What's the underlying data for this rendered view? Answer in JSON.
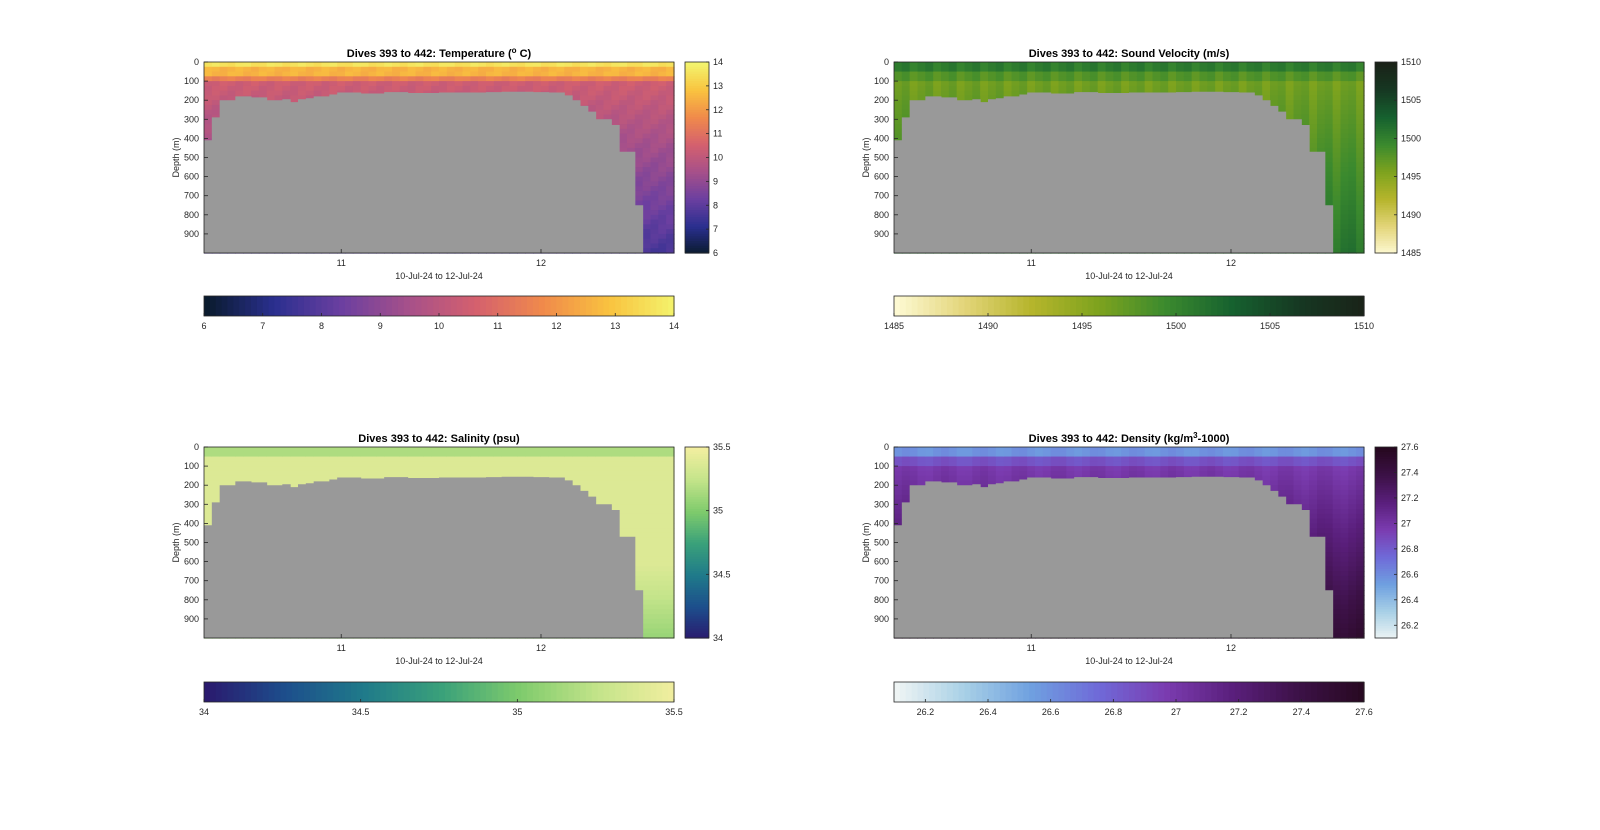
{
  "figure": {
    "background": "#ffffff",
    "terrain_color": "#999999"
  },
  "chart_data": [
    {
      "type": "heatmap",
      "title_parts": [
        "Dives 393 to 442: Temperature (",
        "o",
        " C)"
      ],
      "xlabel": "10-Jul-24 to 12-Jul-24",
      "ylabel": "Depth (m)",
      "xticks": [
        "11",
        "12"
      ],
      "yticks": [
        "0",
        "100",
        "200",
        "300",
        "400",
        "500",
        "600",
        "700",
        "800",
        "900"
      ],
      "ylim": [
        0,
        1000
      ],
      "clim": [
        6,
        14
      ],
      "colorbar_ticks": [
        "6",
        "7",
        "8",
        "9",
        "10",
        "11",
        "12",
        "13",
        "14"
      ],
      "colormap": [
        "#0a1b2e",
        "#2a2f8f",
        "#6b3fa0",
        "#a6508a",
        "#d4606e",
        "#f08a4b",
        "#f9c33f",
        "#f3f56e"
      ],
      "bottom_mark": 7.5
    },
    {
      "type": "heatmap",
      "title_parts": [
        "Dives 393 to 442: Sound Velocity (m/s)"
      ],
      "xlabel": "10-Jul-24 to 12-Jul-24",
      "ylabel": "Depth (m)",
      "xticks": [
        "11",
        "12"
      ],
      "yticks": [
        "0",
        "100",
        "200",
        "300",
        "400",
        "500",
        "600",
        "700",
        "800",
        "900"
      ],
      "ylim": [
        0,
        1000
      ],
      "clim": [
        1485,
        1510
      ],
      "colorbar_ticks": [
        "1485",
        "1490",
        "1495",
        "1500",
        "1505",
        "1510"
      ],
      "colormap": [
        "#fdf9d2",
        "#e3d57a",
        "#b6b52c",
        "#7ea31e",
        "#3b8a2e",
        "#16612f",
        "#163822",
        "#1a2218"
      ],
      "bottom_mark": 1498
    },
    {
      "type": "heatmap",
      "title_parts": [
        "Dives 393 to 442: Salinity (psu)"
      ],
      "xlabel": "10-Jul-24 to 12-Jul-24",
      "ylabel": "Depth (m)",
      "xticks": [
        "11",
        "12"
      ],
      "yticks": [
        "0",
        "100",
        "200",
        "300",
        "400",
        "500",
        "600",
        "700",
        "800",
        "900"
      ],
      "ylim": [
        0,
        1000
      ],
      "clim": [
        34,
        35.5
      ],
      "colorbar_ticks": [
        "34",
        "34.5",
        "35",
        "35.5"
      ],
      "colormap": [
        "#2a1a6e",
        "#1d4e8c",
        "#1f7a8a",
        "#3aa17a",
        "#7fcb6c",
        "#c4e48a",
        "#f3eea0"
      ],
      "bottom_mark": 35.25
    },
    {
      "type": "heatmap",
      "title_parts": [
        "Dives 393 to 442: Density (kg/m",
        "3",
        "-1000)"
      ],
      "xlabel": "10-Jul-24 to 12-Jul-24",
      "ylabel": "Depth (m)",
      "xticks": [
        "11",
        "12"
      ],
      "yticks": [
        "0",
        "100",
        "200",
        "300",
        "400",
        "500",
        "600",
        "700",
        "800",
        "900"
      ],
      "ylim": [
        0,
        1000
      ],
      "clim": [
        26.1,
        27.6
      ],
      "colorbar_ticks": [
        "26.2",
        "26.4",
        "26.6",
        "26.8",
        "27",
        "27.2",
        "27.4",
        "27.6"
      ],
      "colormap": [
        "#eef4f4",
        "#a8d0e6",
        "#6fa0e0",
        "#6f6ad8",
        "#7b3cb0",
        "#5a1f7c",
        "#3c1146",
        "#26081f"
      ],
      "bottom_mark": 27.45
    }
  ]
}
